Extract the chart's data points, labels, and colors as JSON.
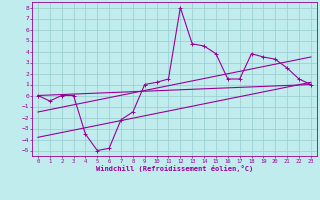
{
  "xlabel": "Windchill (Refroidissement éolien,°C)",
  "bg_color": "#c0ecee",
  "line_color": "#990099",
  "grid_color": "#99cccc",
  "xlim": [
    -0.5,
    23.5
  ],
  "ylim": [
    -5.5,
    8.5
  ],
  "xticks": [
    0,
    1,
    2,
    3,
    4,
    5,
    6,
    7,
    8,
    9,
    10,
    11,
    12,
    13,
    14,
    15,
    16,
    17,
    18,
    19,
    20,
    21,
    22,
    23
  ],
  "yticks": [
    -5,
    -4,
    -3,
    -2,
    -1,
    0,
    1,
    2,
    3,
    4,
    5,
    6,
    7,
    8
  ],
  "data_x": [
    0,
    1,
    2,
    3,
    4,
    5,
    6,
    7,
    8,
    9,
    10,
    11,
    12,
    13,
    14,
    15,
    16,
    17,
    18,
    19,
    20,
    21,
    22,
    23
  ],
  "data_y": [
    0,
    -0.5,
    0,
    0,
    -3.5,
    -5,
    -4.8,
    -2.2,
    -1.5,
    1.0,
    1.2,
    1.5,
    8.0,
    4.7,
    4.5,
    3.8,
    1.5,
    1.5,
    3.8,
    3.5,
    3.3,
    2.5,
    1.5,
    1.0
  ],
  "line1_x": [
    0,
    23
  ],
  "line1_y": [
    0.0,
    1.0
  ],
  "line2_x": [
    0,
    23
  ],
  "line2_y": [
    -1.5,
    3.5
  ],
  "line3_x": [
    0,
    23
  ],
  "line3_y": [
    -3.8,
    1.2
  ]
}
